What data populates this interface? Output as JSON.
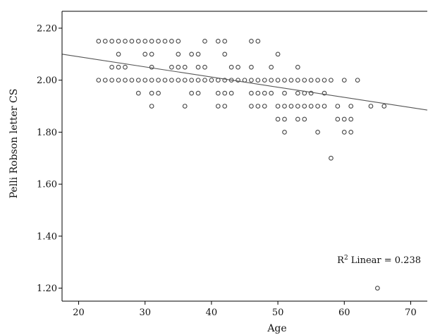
{
  "chart_data": {
    "type": "scatter",
    "title": "",
    "xlabel": "Age",
    "ylabel": "Pelli Robson letter CS",
    "xlim": [
      17.5,
      72.5
    ],
    "ylim": [
      1.15,
      2.265
    ],
    "xticks": [
      20,
      30,
      40,
      50,
      60,
      70
    ],
    "yticks": [
      1.2,
      1.4,
      1.6,
      1.8,
      2.0,
      2.2
    ],
    "xtick_labels": [
      "20",
      "30",
      "40",
      "50",
      "60",
      "70"
    ],
    "ytick_labels": [
      "1.20",
      "1.40",
      "1.60",
      "1.80",
      "2.00",
      "2.20"
    ],
    "grid": false,
    "marker": "open-circle",
    "colors": {
      "marker": "#444444",
      "line": "#555555",
      "axis": "#000000"
    },
    "fit_line": {
      "type": "linear",
      "points": [
        [
          17.5,
          2.1
        ],
        [
          72.5,
          1.885
        ]
      ],
      "label_prefix": "R",
      "label_sup": "2",
      "label_rest": " Linear = 0.238"
    },
    "points": [
      [
        23,
        2.15
      ],
      [
        24,
        2.15
      ],
      [
        25,
        2.15
      ],
      [
        26,
        2.15
      ],
      [
        27,
        2.15
      ],
      [
        28,
        2.15
      ],
      [
        29,
        2.15
      ],
      [
        30,
        2.15
      ],
      [
        31,
        2.15
      ],
      [
        32,
        2.15
      ],
      [
        33,
        2.15
      ],
      [
        34,
        2.15
      ],
      [
        35,
        2.15
      ],
      [
        39,
        2.15
      ],
      [
        41,
        2.15
      ],
      [
        42,
        2.15
      ],
      [
        46,
        2.15
      ],
      [
        47,
        2.15
      ],
      [
        26,
        2.1
      ],
      [
        30,
        2.1
      ],
      [
        31,
        2.1
      ],
      [
        35,
        2.1
      ],
      [
        37,
        2.1
      ],
      [
        38,
        2.1
      ],
      [
        42,
        2.1
      ],
      [
        50,
        2.1
      ],
      [
        25,
        2.05
      ],
      [
        26,
        2.05
      ],
      [
        27,
        2.05
      ],
      [
        31,
        2.05
      ],
      [
        34,
        2.05
      ],
      [
        35,
        2.05
      ],
      [
        36,
        2.05
      ],
      [
        38,
        2.05
      ],
      [
        39,
        2.05
      ],
      [
        43,
        2.05
      ],
      [
        44,
        2.05
      ],
      [
        46,
        2.05
      ],
      [
        49,
        2.05
      ],
      [
        53,
        2.05
      ],
      [
        23,
        2.0
      ],
      [
        24,
        2.0
      ],
      [
        25,
        2.0
      ],
      [
        26,
        2.0
      ],
      [
        27,
        2.0
      ],
      [
        28,
        2.0
      ],
      [
        29,
        2.0
      ],
      [
        30,
        2.0
      ],
      [
        31,
        2.0
      ],
      [
        32,
        2.0
      ],
      [
        33,
        2.0
      ],
      [
        34,
        2.0
      ],
      [
        35,
        2.0
      ],
      [
        36,
        2.0
      ],
      [
        37,
        2.0
      ],
      [
        38,
        2.0
      ],
      [
        39,
        2.0
      ],
      [
        40,
        2.0
      ],
      [
        41,
        2.0
      ],
      [
        42,
        2.0
      ],
      [
        43,
        2.0
      ],
      [
        44,
        2.0
      ],
      [
        45,
        2.0
      ],
      [
        46,
        2.0
      ],
      [
        47,
        2.0
      ],
      [
        48,
        2.0
      ],
      [
        49,
        2.0
      ],
      [
        50,
        2.0
      ],
      [
        51,
        2.0
      ],
      [
        52,
        2.0
      ],
      [
        53,
        2.0
      ],
      [
        54,
        2.0
      ],
      [
        55,
        2.0
      ],
      [
        56,
        2.0
      ],
      [
        57,
        2.0
      ],
      [
        58,
        2.0
      ],
      [
        60,
        2.0
      ],
      [
        62,
        2.0
      ],
      [
        29,
        1.95
      ],
      [
        31,
        1.95
      ],
      [
        32,
        1.95
      ],
      [
        37,
        1.95
      ],
      [
        38,
        1.95
      ],
      [
        41,
        1.95
      ],
      [
        42,
        1.95
      ],
      [
        43,
        1.95
      ],
      [
        46,
        1.95
      ],
      [
        47,
        1.95
      ],
      [
        48,
        1.95
      ],
      [
        49,
        1.95
      ],
      [
        51,
        1.95
      ],
      [
        53,
        1.95
      ],
      [
        54,
        1.95
      ],
      [
        55,
        1.95
      ],
      [
        57,
        1.95
      ],
      [
        31,
        1.9
      ],
      [
        36,
        1.9
      ],
      [
        41,
        1.9
      ],
      [
        42,
        1.9
      ],
      [
        46,
        1.9
      ],
      [
        47,
        1.9
      ],
      [
        48,
        1.9
      ],
      [
        50,
        1.9
      ],
      [
        51,
        1.9
      ],
      [
        52,
        1.9
      ],
      [
        53,
        1.9
      ],
      [
        54,
        1.9
      ],
      [
        55,
        1.9
      ],
      [
        56,
        1.9
      ],
      [
        57,
        1.9
      ],
      [
        59,
        1.9
      ],
      [
        61,
        1.9
      ],
      [
        64,
        1.9
      ],
      [
        66,
        1.9
      ],
      [
        50,
        1.85
      ],
      [
        51,
        1.85
      ],
      [
        53,
        1.85
      ],
      [
        54,
        1.85
      ],
      [
        59,
        1.85
      ],
      [
        60,
        1.85
      ],
      [
        61,
        1.85
      ],
      [
        51,
        1.8
      ],
      [
        56,
        1.8
      ],
      [
        60,
        1.8
      ],
      [
        61,
        1.8
      ],
      [
        58,
        1.7
      ],
      [
        65,
        1.2
      ]
    ]
  }
}
